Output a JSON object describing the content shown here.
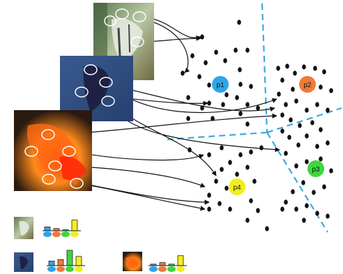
{
  "figure": {
    "prototypes": [
      {
        "label": "p1",
        "color": "#2fa5e6"
      },
      {
        "label": "p2",
        "color": "#f07a3a"
      },
      {
        "label": "p3",
        "color": "#3ed63e"
      },
      {
        "label": "p4",
        "color": "#f2ee1e"
      }
    ],
    "images": [
      {
        "name": "angelfish-photo",
        "descriptors": 4
      },
      {
        "name": "betta-photo",
        "descriptors": 4
      },
      {
        "name": "goldfish-photo",
        "descriptors": 6
      }
    ],
    "histograms": [
      {
        "name": "angelfish",
        "values": [
          0.25,
          0.15,
          0.05,
          0.7
        ]
      },
      {
        "name": "betta",
        "values": [
          0.3,
          0.4,
          1.0,
          0.6
        ]
      },
      {
        "name": "goldfish",
        "values": [
          0.1,
          0.2,
          0.1,
          0.65
        ]
      }
    ],
    "colors": {
      "partition": "#3aaae0",
      "point": "#111111",
      "arrow": "#111111"
    }
  }
}
